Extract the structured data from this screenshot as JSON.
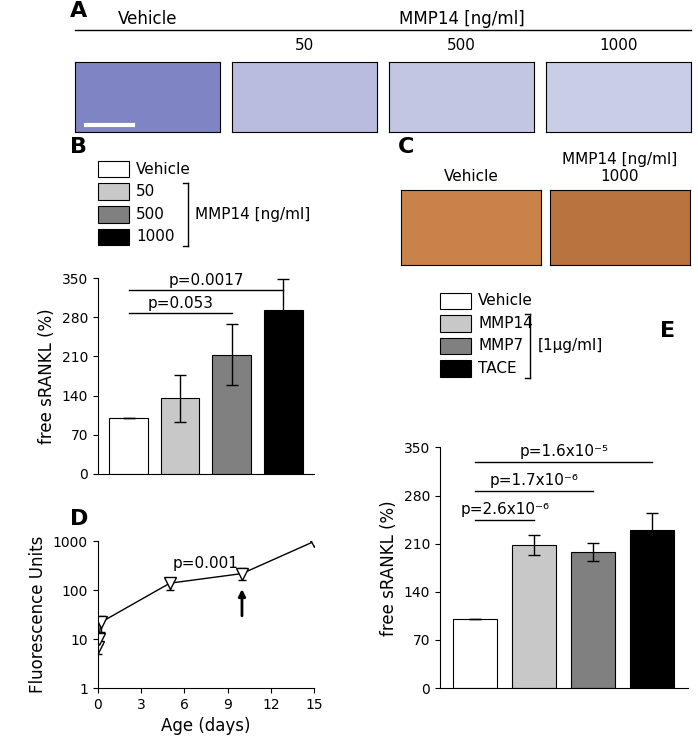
{
  "panels": {
    "A": {
      "panel": "A",
      "groups": [
        "Vehicle",
        "MMP14 [ng/ml]"
      ],
      "sublabels": [
        "50",
        "500",
        "1000"
      ]
    },
    "C": {
      "panel": "C",
      "labels": [
        [
          "Vehicle"
        ],
        [
          "MMP14 [ng/ml]",
          "1000"
        ]
      ]
    }
  },
  "chart_data": [
    {
      "panel": "B",
      "type": "bar",
      "categories": [
        "Vehicle",
        "50",
        "500",
        "1000"
      ],
      "values": [
        100,
        135,
        213,
        293
      ],
      "errors": [
        0,
        42,
        55,
        55
      ],
      "colors": [
        "#ffffff",
        "#c8c8c8",
        "#808080",
        "#000000"
      ],
      "group": {
        "label": "MMP14 [ng/ml]",
        "members": [
          "50",
          "500",
          "1000"
        ]
      },
      "y_label": "free sRANKL (%)",
      "ylim": [
        0,
        350
      ],
      "yticks": [
        0,
        70,
        140,
        210,
        280,
        350
      ],
      "tick_labels": "y",
      "comparisons": [
        {
          "from": "Vehicle",
          "to": "500",
          "text": "p=0.053"
        },
        {
          "from": "Vehicle",
          "to": "1000",
          "text": "p=0.0017"
        }
      ]
    },
    {
      "panel": "D",
      "type": "line",
      "x": [
        0,
        0.1,
        0.2,
        5,
        10,
        15
      ],
      "values": [
        7,
        10,
        22,
        140,
        220,
        1000
      ],
      "errors": [
        2,
        2,
        8,
        40,
        60,
        0
      ],
      "color": "#000000",
      "marker": "triangle_down",
      "x_label": "Age (days)",
      "y_label": "Fluorescence Units",
      "xlim": [
        0,
        15
      ],
      "xticks": [
        0,
        3,
        6,
        9,
        12,
        15
      ],
      "ylim": [
        1,
        1000
      ],
      "yticks": [
        1,
        10,
        100,
        1000
      ],
      "log": "y",
      "annotation": "p=0.001",
      "arrow_x": 10
    },
    {
      "panel": "E",
      "type": "bar",
      "categories": [
        "Vehicle",
        "MMP14",
        "MMP7",
        "TACE"
      ],
      "values": [
        100,
        208,
        198,
        230
      ],
      "errors": [
        0,
        15,
        13,
        25
      ],
      "colors": [
        "#ffffff",
        "#c8c8c8",
        "#808080",
        "#000000"
      ],
      "group": {
        "label": "[1μg/ml]",
        "members": [
          "MMP14",
          "MMP7",
          "TACE"
        ]
      },
      "y_label": "free sRANKL (%)",
      "ylim": [
        0,
        350
      ],
      "yticks": [
        0,
        70,
        140,
        210,
        280,
        350
      ],
      "tick_labels": "y",
      "comparisons": [
        {
          "from": "Vehicle",
          "to": "MMP14",
          "text": "p=2.6x10⁻⁶"
        },
        {
          "from": "Vehicle",
          "to": "MMP7",
          "text": "p=1.7x10⁻⁶"
        },
        {
          "from": "Vehicle",
          "to": "TACE",
          "text": "p=1.6x10⁻⁵"
        }
      ]
    }
  ]
}
